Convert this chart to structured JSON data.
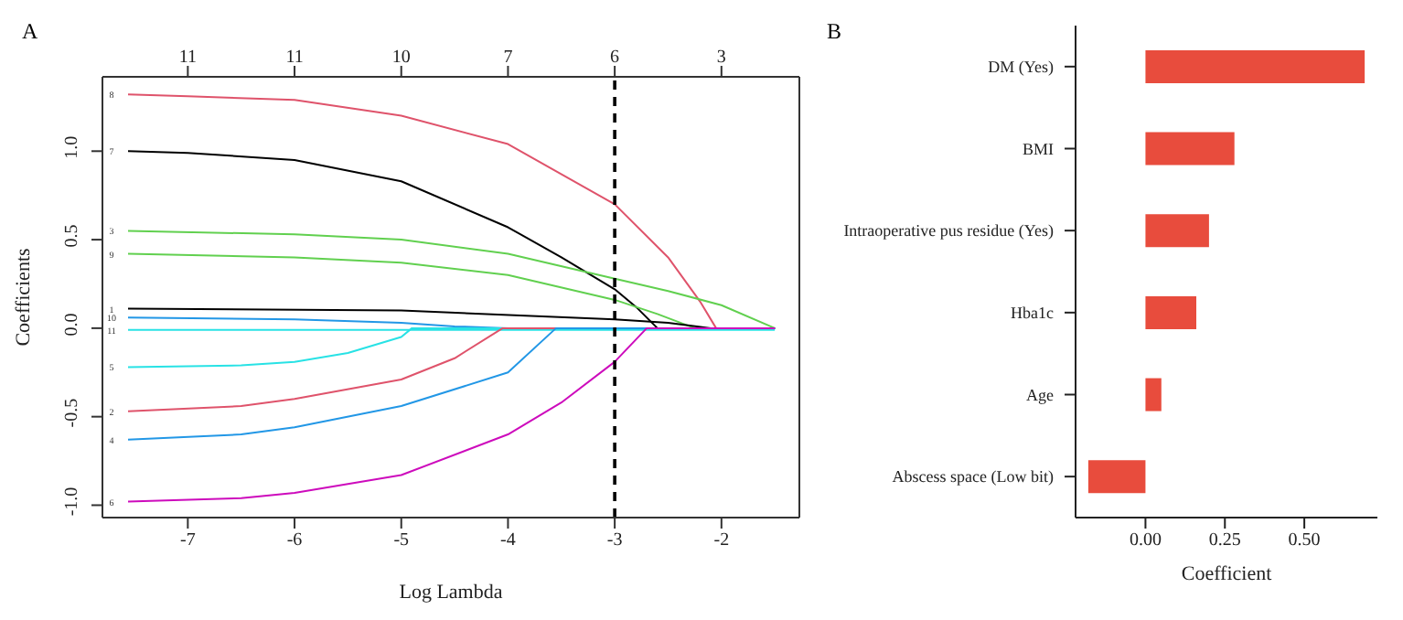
{
  "chart_data": [
    {
      "type": "line",
      "xlabel": "Log Lambda",
      "ylabel": "Coefficients",
      "marker": "none",
      "line_style": "solid",
      "grid": false,
      "legend": false,
      "xlim": [
        -7.8,
        -1.27
      ],
      "xticks": [
        -7,
        -6,
        -5,
        -4,
        -3,
        -2
      ],
      "ylim": [
        -1.07,
        1.42
      ],
      "yticks": [
        {
          "value": -1,
          "label": "-1.0"
        },
        {
          "value": -0.5,
          "label": "-0.5"
        },
        {
          "value": 0,
          "label": "0.0"
        },
        {
          "value": 0.5,
          "label": "0.5"
        },
        {
          "value": 1,
          "label": "1.0"
        }
      ],
      "ref_lines": [
        {
          "axis": "x",
          "value": -3,
          "color": "#000000",
          "line_style": "dashed"
        }
      ],
      "series": [
        {
          "name": "8",
          "color": "#df536b",
          "x": [
            -7.56,
            -7,
            -6,
            -5,
            -4,
            -3,
            -2.5,
            -2.2,
            -2.05,
            -1.5
          ],
          "values": [
            1.32,
            1.31,
            1.29,
            1.2,
            1.04,
            0.7,
            0.4,
            0.15,
            0,
            0
          ]
        },
        {
          "name": "7",
          "color": "#000000",
          "x": [
            -7.56,
            -7,
            -6,
            -5,
            -4,
            -3.5,
            -3,
            -2.8,
            -2.6,
            -1.5
          ],
          "values": [
            1.0,
            0.99,
            0.95,
            0.83,
            0.57,
            0.4,
            0.22,
            0.12,
            0,
            0
          ]
        },
        {
          "name": "3",
          "color": "#61d04f",
          "x": [
            -7.56,
            -6,
            -5,
            -4,
            -3,
            -2.5,
            -2,
            -1.5
          ],
          "values": [
            0.55,
            0.53,
            0.5,
            0.42,
            0.28,
            0.21,
            0.13,
            0
          ]
        },
        {
          "name": "9",
          "color": "#61d04f",
          "x": [
            -7.56,
            -6,
            -5,
            -4,
            -3,
            -2.6,
            -2.25,
            -1.5
          ],
          "values": [
            0.42,
            0.4,
            0.37,
            0.3,
            0.16,
            0.08,
            0,
            0
          ]
        },
        {
          "name": "1",
          "color": "#000000",
          "x": [
            -7.56,
            -5,
            -3,
            -2.5,
            -2.1,
            -1.5
          ],
          "values": [
            0.11,
            0.1,
            0.05,
            0.03,
            0,
            0
          ]
        },
        {
          "name": "10",
          "color": "#2297e6",
          "x": [
            -7.56,
            -6,
            -5,
            -4.5,
            -4,
            -1.5
          ],
          "values": [
            0.06,
            0.05,
            0.03,
            0.01,
            0,
            0
          ]
        },
        {
          "name": "11",
          "color": "#28e2e5",
          "x": [
            -7.56,
            -1.5
          ],
          "values": [
            -0.01,
            -0.01
          ]
        },
        {
          "name": "5",
          "color": "#28e2e5",
          "x": [
            -7.56,
            -6.5,
            -6,
            -5.5,
            -5,
            -4.9,
            -1.5
          ],
          "values": [
            -0.22,
            -0.21,
            -0.19,
            -0.14,
            -0.05,
            0,
            0
          ]
        },
        {
          "name": "2",
          "color": "#df536b",
          "x": [
            -7.56,
            -6.5,
            -6,
            -5,
            -4.5,
            -4.05,
            -1.5
          ],
          "values": [
            -0.47,
            -0.44,
            -0.4,
            -0.29,
            -0.17,
            0,
            0
          ]
        },
        {
          "name": "4",
          "color": "#2297e6",
          "x": [
            -7.56,
            -6.5,
            -6,
            -5,
            -4,
            -3.55,
            -1.5
          ],
          "values": [
            -0.63,
            -0.6,
            -0.56,
            -0.44,
            -0.25,
            0,
            0
          ]
        },
        {
          "name": "6",
          "color": "#cd0bbc",
          "x": [
            -7.56,
            -6.5,
            -6,
            -5,
            -4,
            -3.5,
            -3,
            -2.7,
            -1.5
          ],
          "values": [
            -0.98,
            -0.96,
            -0.93,
            -0.83,
            -0.6,
            -0.42,
            -0.19,
            0,
            0
          ]
        }
      ],
      "annotations": [
        "A",
        "11",
        "11",
        "10",
        "7",
        "6",
        "3"
      ]
    },
    {
      "type": "bar",
      "orientation": "horizontal",
      "xlabel": "Coefficient",
      "color": "#e84c3d",
      "grid": false,
      "legend": false,
      "categories": [
        "DM (Yes)",
        "BMI",
        "Intraoperative pus residue (Yes)",
        "Hba1c",
        "Age",
        "Abscess space (Low bit)"
      ],
      "values": [
        0.69,
        0.28,
        0.2,
        0.16,
        0.05,
        -0.18
      ],
      "xlim": [
        -0.22,
        0.73
      ],
      "xticks": [
        {
          "value": 0,
          "label": "0.00"
        },
        {
          "value": 0.25,
          "label": "0.25"
        },
        {
          "value": 0.5,
          "label": "0.50"
        }
      ],
      "annotations": [
        "B"
      ]
    }
  ]
}
